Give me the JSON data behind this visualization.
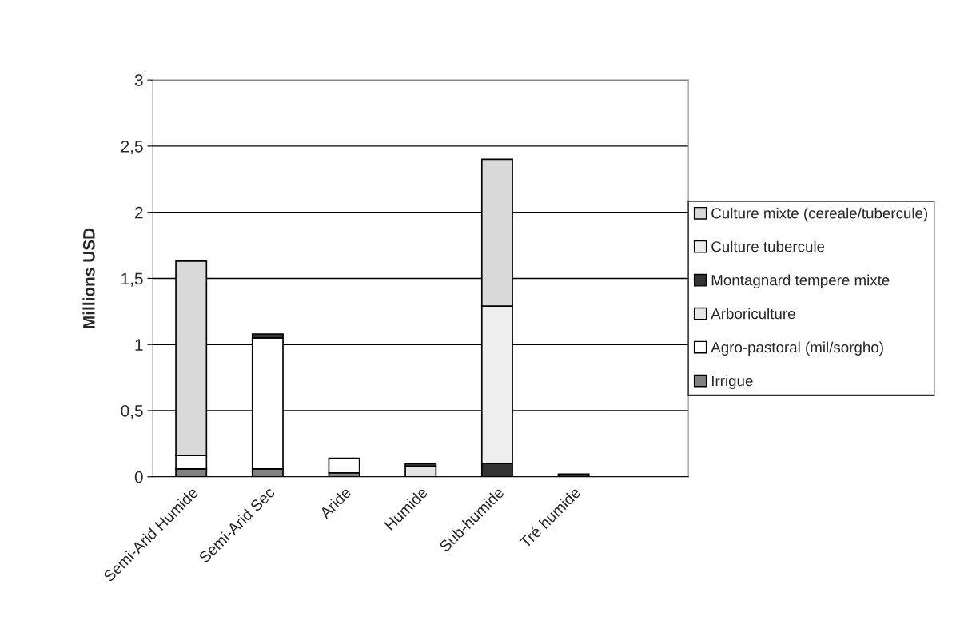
{
  "chart_data": {
    "type": "bar",
    "stacked": true,
    "ylabel": "Millions USD",
    "categories": [
      "Semi-Arid Humide",
      "Semi-Arid Sec",
      "Aride",
      "Humide",
      "Sub-humide",
      "Tré humide",
      null
    ],
    "series": [
      {
        "name": "Irrigue",
        "color": "#808080",
        "values": [
          0.06,
          0.06,
          0.03,
          null,
          null,
          null,
          null
        ]
      },
      {
        "name": "Agro-pastoral (mil/sorgho)",
        "color": "#ffffff",
        "values": [
          0.1,
          0.99,
          0.11,
          null,
          null,
          null,
          null
        ]
      },
      {
        "name": "Arboriculture",
        "color": "#e6e6e6",
        "values": [
          null,
          null,
          null,
          0.08,
          null,
          null,
          null
        ]
      },
      {
        "name": "Montagnard tempere mixte",
        "color": "#333333",
        "values": [
          null,
          0.03,
          null,
          0.02,
          0.1,
          0.02,
          null
        ]
      },
      {
        "name": "Culture tubercule",
        "color": "#eeeeee",
        "values": [
          null,
          null,
          null,
          null,
          1.19,
          null,
          null
        ]
      },
      {
        "name": "Culture mixte (cereale/tubercule)",
        "color": "#d9d9d9",
        "values": [
          1.47,
          null,
          null,
          null,
          1.11,
          null,
          null
        ]
      }
    ],
    "ylim": [
      0,
      3
    ],
    "yticks": [
      0,
      {
        "value": 0.5,
        "label": "0,5"
      },
      1,
      {
        "value": 1.5,
        "label": "1,5"
      },
      2,
      {
        "value": 2.5,
        "label": "2,5"
      },
      3
    ],
    "grid": "y",
    "legend": "right"
  }
}
